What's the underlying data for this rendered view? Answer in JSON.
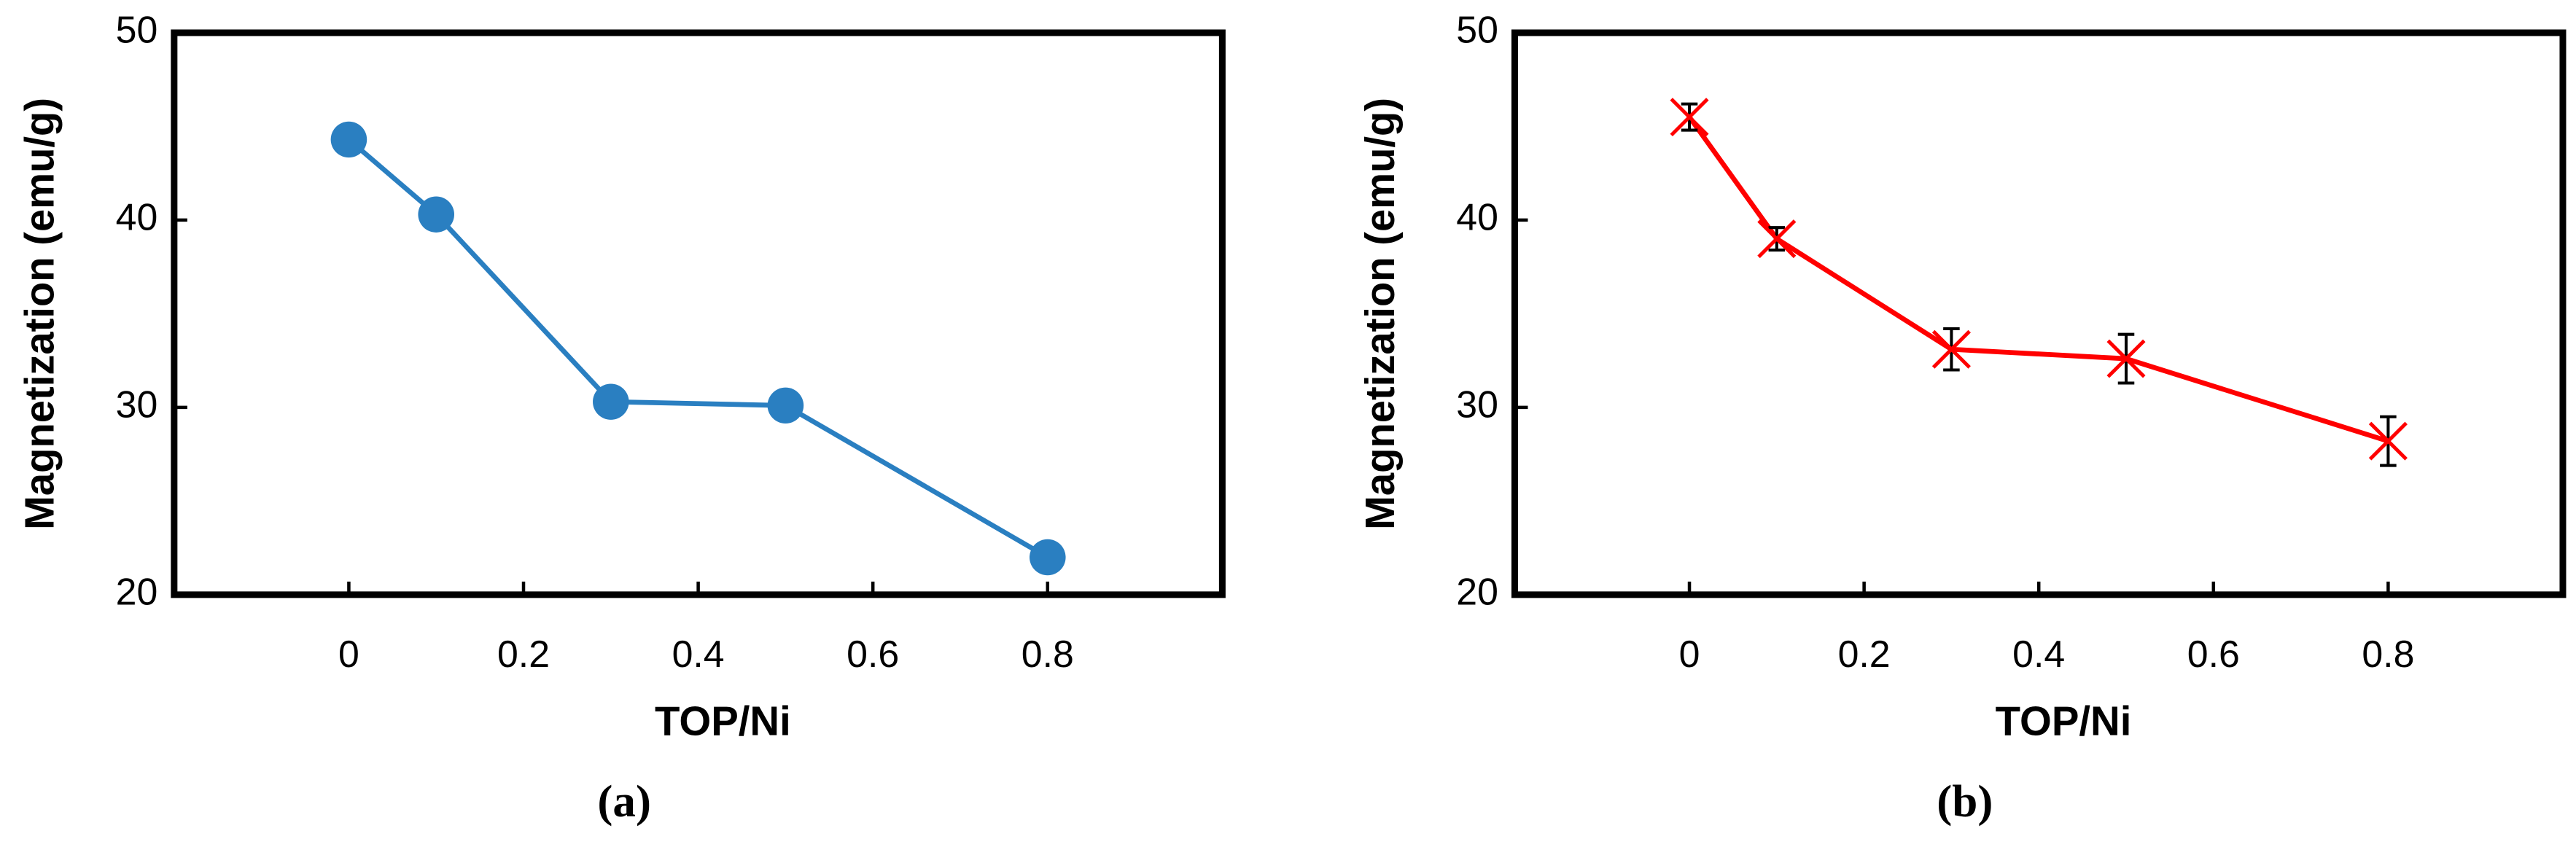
{
  "chart_data": [
    {
      "type": "line",
      "marker": "circle",
      "color": "#2a7fc1",
      "x": [
        0,
        0.1,
        0.3,
        0.5,
        0.8
      ],
      "values": [
        44.3,
        40.3,
        30.3,
        30.1,
        22.0
      ],
      "xlim": [
        -0.2,
        1.0
      ],
      "xticks": [
        0,
        0.2,
        0.4,
        0.6,
        0.8
      ],
      "ylim": [
        20,
        50
      ],
      "yticks": [
        20,
        30,
        40,
        50
      ],
      "xlabel": "TOP/Ni",
      "ylabel": "Magnetization (emu/g)",
      "caption": "(a)"
    },
    {
      "type": "line",
      "marker": "x",
      "color": "#ff0000",
      "error_color": "#000000",
      "x": [
        0,
        0.1,
        0.3,
        0.5,
        0.8
      ],
      "values": [
        45.5,
        39.0,
        33.1,
        32.6,
        28.2
      ],
      "errors": [
        0.7,
        0.6,
        1.1,
        1.3,
        1.3
      ],
      "xlim": [
        -0.2,
        1.0
      ],
      "xticks": [
        0,
        0.2,
        0.4,
        0.6,
        0.8
      ],
      "ylim": [
        20,
        50
      ],
      "yticks": [
        20,
        30,
        40,
        50
      ],
      "xlabel": "TOP/Ni",
      "ylabel": "Magnetization (emu/g)",
      "caption": "(b)"
    }
  ]
}
